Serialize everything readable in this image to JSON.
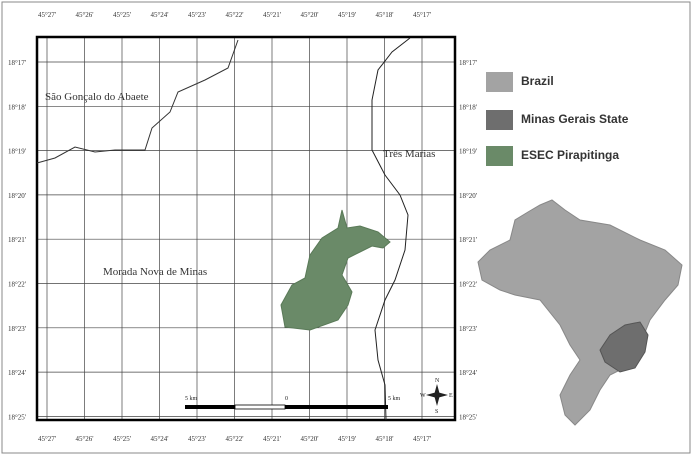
{
  "map": {
    "lon_labels": [
      "45°27'",
      "45°26'",
      "45°25'",
      "45°24'",
      "45°23'",
      "45°22'",
      "45°21'",
      "45°20'",
      "45°19'",
      "45°18'",
      "45°17'"
    ],
    "lat_labels": [
      "18°17'",
      "18°18'",
      "18°19'",
      "18°20'",
      "18°21'",
      "18°22'",
      "18°23'",
      "18°24'",
      "18°25'"
    ],
    "places": [
      "São Gonçalo do Abaete",
      "Três Marias",
      "Morada Nova de Minas"
    ],
    "scale_labels": [
      "5 km",
      "0",
      "5 km"
    ],
    "compass": [
      "N",
      "S",
      "W",
      "E"
    ],
    "legend": [
      "Brazil",
      "Minas Gerais State",
      "ESEC Pirapitinga"
    ]
  }
}
